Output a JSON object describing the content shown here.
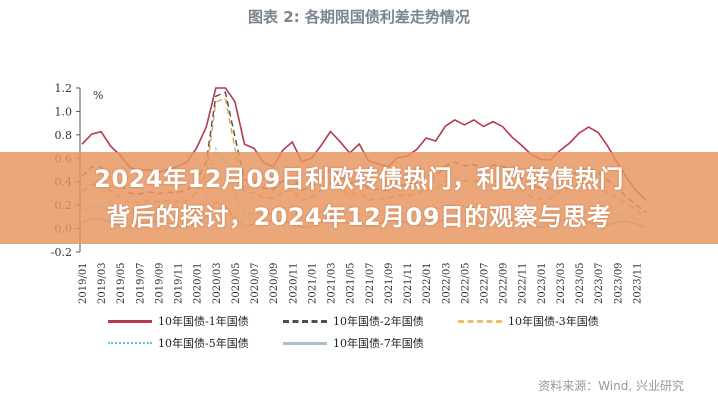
{
  "title": "图表 2:  各期限国债利差走势情况",
  "banner": {
    "line1": "2024年12月09日利欧转债热门，利欧转债热门",
    "line2": "背后的探讨，2024年12月09日的观察与思考"
  },
  "source": "资料来源：Wind, 兴业研究",
  "chart_data": {
    "type": "line",
    "title": "图表 2:  各期限国债利差走势情况",
    "ylabel": "%",
    "ylim": [
      -0.2,
      1.2
    ],
    "yticks": [
      "1.2",
      "1.0",
      "0.8",
      "0.6",
      "0.4",
      "0.2",
      "0.0",
      "-0.2"
    ],
    "xticks": [
      "2019/01",
      "2019/03",
      "2019/05",
      "2019/07",
      "2019/09",
      "2019/11",
      "2020/01",
      "2020/03",
      "2020/05",
      "2020/07",
      "2020/09",
      "2020/11",
      "2021/01",
      "2021/03",
      "2021/05",
      "2021/07",
      "2021/09",
      "2021/11",
      "2022/01",
      "2022/03",
      "2022/05",
      "2022/07",
      "2022/09",
      "2022/11",
      "2023/01",
      "2023/03",
      "2023/05",
      "2023/07",
      "2023/09",
      "2023/11"
    ],
    "legend_placement": "bottom",
    "series": [
      {
        "name": "10年国债-1年国债",
        "color": "#b5394f",
        "style": "solid",
        "values": [
          0.72,
          0.78,
          0.8,
          0.7,
          0.65,
          0.55,
          0.5,
          0.48,
          0.45,
          0.5,
          0.55,
          0.6,
          0.7,
          0.85,
          1.2,
          1.3,
          1.1,
          0.75,
          0.7,
          0.55,
          0.5,
          0.65,
          0.75,
          0.6,
          0.62,
          0.7,
          0.8,
          0.72,
          0.65,
          0.75,
          0.6,
          0.55,
          0.5,
          0.58,
          0.62,
          0.7,
          0.8,
          0.75,
          0.85,
          0.9,
          0.88,
          0.95,
          0.9,
          0.92,
          0.85,
          0.75,
          0.7,
          0.65,
          0.62,
          0.6,
          0.65,
          0.7,
          0.8,
          0.88,
          0.85,
          0.72,
          0.55,
          0.4,
          0.3,
          0.25
        ]
      },
      {
        "name": "10年国债-2年国债",
        "color": "#4a4f57",
        "style": "dashed",
        "values": [
          0.45,
          0.5,
          0.5,
          0.42,
          0.4,
          0.33,
          0.3,
          0.29,
          0.27,
          0.3,
          0.33,
          0.36,
          0.42,
          0.55,
          1.1,
          1.15,
          0.8,
          0.45,
          0.42,
          0.33,
          0.3,
          0.39,
          0.45,
          0.36,
          0.37,
          0.42,
          0.48,
          0.43,
          0.39,
          0.45,
          0.36,
          0.33,
          0.3,
          0.35,
          0.37,
          0.42,
          0.48,
          0.45,
          0.51,
          0.54,
          0.53,
          0.57,
          0.54,
          0.55,
          0.51,
          0.45,
          0.42,
          0.39,
          0.37,
          0.36,
          0.39,
          0.42,
          0.48,
          0.53,
          0.51,
          0.43,
          0.33,
          0.24,
          0.18,
          0.15
        ]
      },
      {
        "name": "10年国债-3年国债",
        "color": "#e8a440",
        "style": "dashed",
        "values": [
          0.32,
          0.35,
          0.36,
          0.32,
          0.29,
          0.25,
          0.23,
          0.22,
          0.2,
          0.23,
          0.25,
          0.27,
          0.32,
          0.45,
          1.05,
          1.1,
          0.7,
          0.34,
          0.32,
          0.25,
          0.23,
          0.29,
          0.34,
          0.27,
          0.28,
          0.32,
          0.36,
          0.32,
          0.29,
          0.34,
          0.27,
          0.25,
          0.23,
          0.26,
          0.28,
          0.32,
          0.36,
          0.34,
          0.38,
          0.41,
          0.4,
          0.43,
          0.41,
          0.41,
          0.38,
          0.34,
          0.32,
          0.29,
          0.28,
          0.27,
          0.29,
          0.32,
          0.36,
          0.4,
          0.38,
          0.32,
          0.25,
          0.18,
          0.14,
          0.11
        ]
      },
      {
        "name": "10年国债-5年国债",
        "color": "#5fc9d6",
        "style": "dotted",
        "values": [
          0.15,
          0.16,
          0.16,
          0.14,
          0.13,
          0.11,
          0.1,
          0.1,
          0.09,
          0.1,
          0.11,
          0.12,
          0.14,
          0.25,
          0.65,
          0.55,
          0.3,
          0.15,
          0.14,
          0.11,
          0.1,
          0.13,
          0.15,
          0.12,
          0.12,
          0.14,
          0.16,
          0.14,
          0.13,
          0.15,
          0.12,
          0.11,
          0.1,
          0.12,
          0.12,
          0.14,
          0.16,
          0.15,
          0.17,
          0.18,
          0.18,
          0.19,
          0.18,
          0.18,
          0.17,
          0.15,
          0.14,
          0.13,
          0.12,
          0.12,
          0.13,
          0.14,
          0.16,
          0.18,
          0.17,
          0.14,
          0.11,
          0.08,
          0.06,
          0.05
        ]
      },
      {
        "name": "10年国债-7年国债",
        "color": "#a9c0cf",
        "style": "solid",
        "values": [
          0.05,
          0.06,
          0.06,
          0.05,
          0.05,
          0.04,
          0.04,
          0.04,
          0.03,
          0.04,
          0.04,
          0.05,
          0.05,
          0.08,
          0.2,
          0.18,
          0.1,
          0.05,
          0.05,
          0.04,
          0.04,
          0.05,
          0.05,
          0.04,
          0.04,
          0.05,
          0.06,
          0.05,
          0.05,
          0.05,
          0.04,
          0.04,
          0.04,
          0.04,
          0.05,
          0.05,
          0.06,
          0.05,
          0.06,
          0.06,
          0.06,
          0.07,
          0.06,
          0.06,
          0.06,
          0.05,
          0.05,
          0.05,
          0.04,
          0.04,
          0.05,
          0.05,
          0.06,
          0.06,
          0.06,
          0.05,
          0.04,
          0.03,
          0.02,
          0.02
        ]
      }
    ]
  }
}
